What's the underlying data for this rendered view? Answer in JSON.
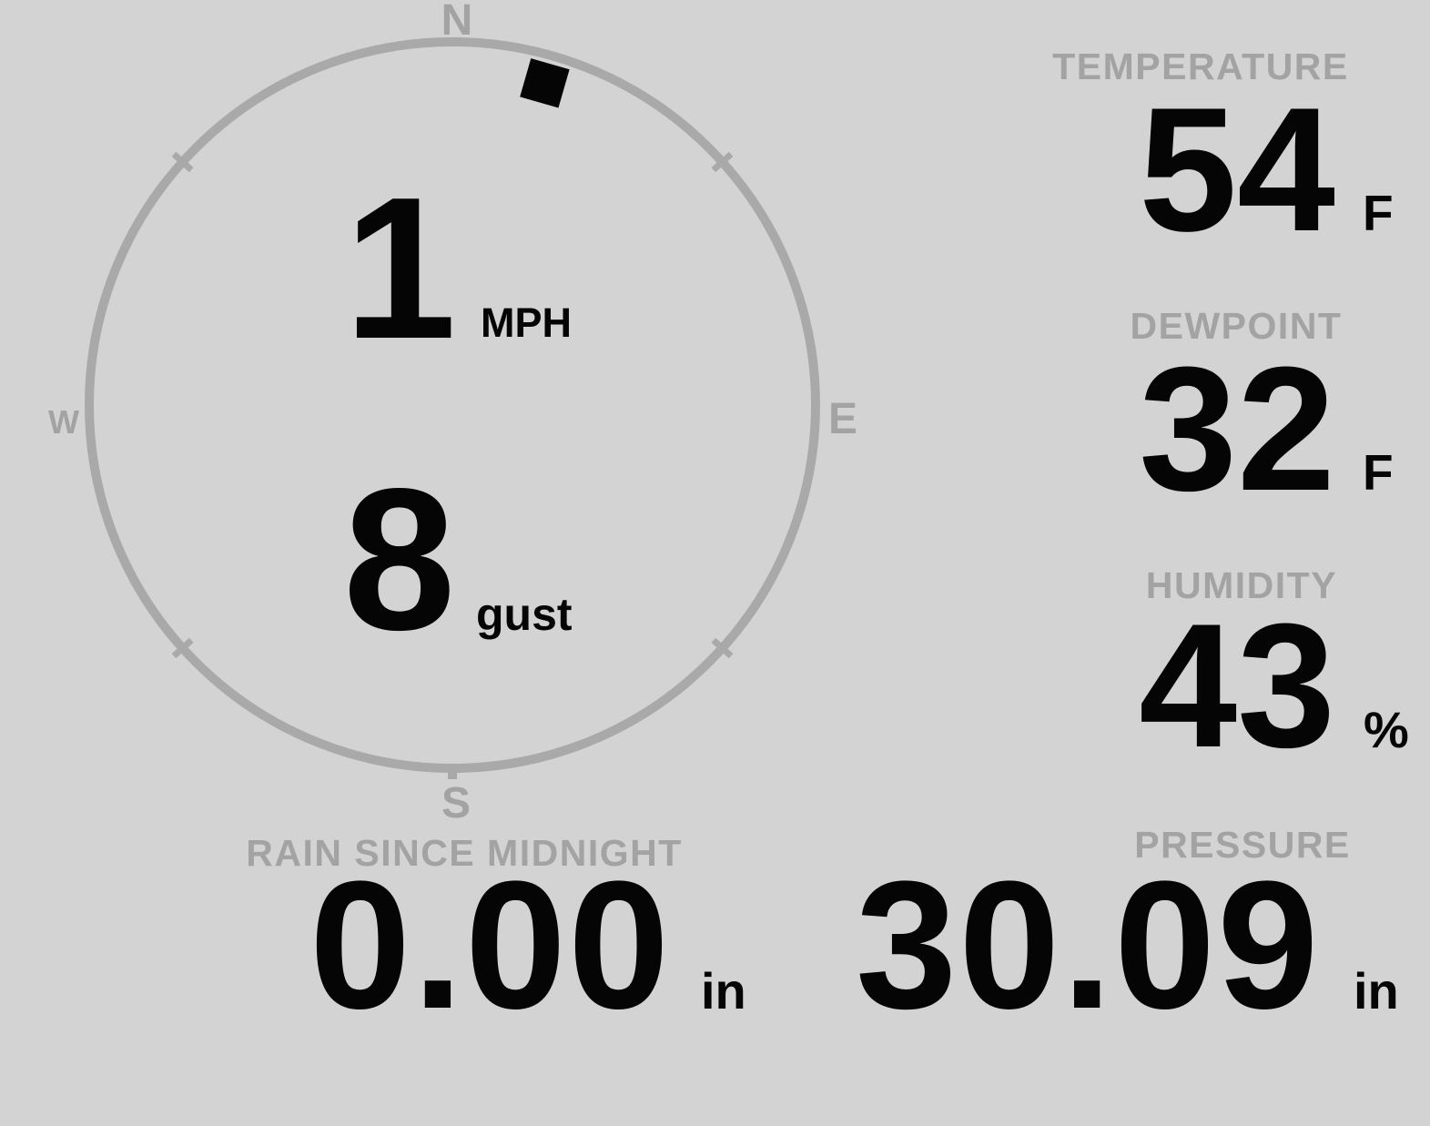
{
  "colors": {
    "bg": "#d3d3d3",
    "ring": "#a9a9a9",
    "muted": "#a3a3a3",
    "ink": "#050505"
  },
  "compass": {
    "cardinals": {
      "north": "N",
      "east": "E",
      "south": "S",
      "west": "W"
    },
    "wind_direction_deg": 16,
    "speed": {
      "value": "1",
      "unit": "MPH"
    },
    "gust": {
      "value": "8",
      "unit": "gust"
    }
  },
  "metrics": {
    "temperature": {
      "label": "TEMPERATURE",
      "value": "54",
      "unit": "F"
    },
    "dewpoint": {
      "label": "DEWPOINT",
      "value": "32",
      "unit": "F"
    },
    "humidity": {
      "label": "HUMIDITY",
      "value": "43",
      "unit": "%"
    },
    "rain": {
      "label": "RAIN SINCE MIDNIGHT",
      "value": "0.00",
      "unit": "in"
    },
    "pressure": {
      "label": "PRESSURE",
      "value": "30.09",
      "unit": "in"
    }
  }
}
